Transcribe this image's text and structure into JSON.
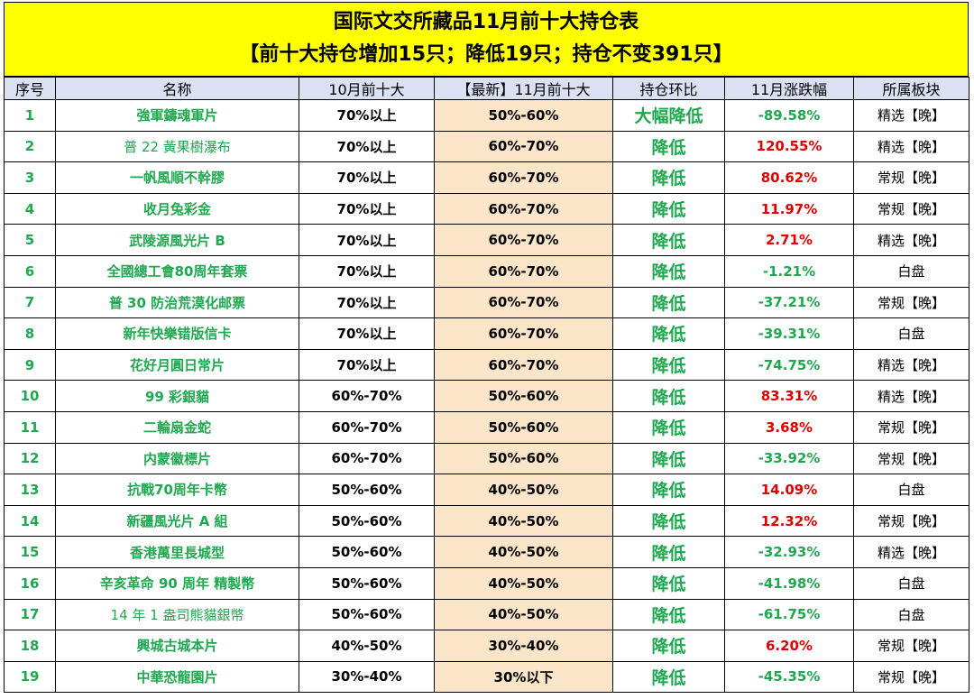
{
  "title": {
    "line1": "国际文交所藏品11月前十大持仓表",
    "line2": "【前十大持仓增加15只；降低19只；持仓不变391只】"
  },
  "headers": [
    "序号",
    "名称",
    "10月前十大",
    "【最新】11月前十大",
    "持仓环比",
    "11月涨跌幅",
    "所属板块"
  ],
  "colors": {
    "title_bg": "#ffff00",
    "header_bg": "#d9e1f2",
    "highlight_col": "#fbe5c8",
    "green": "#1fa84f",
    "red": "#e00000"
  },
  "rows": [
    {
      "no": "1",
      "name": "強軍鑄魂軍片",
      "oct": "70%以上",
      "nov": "50%-60%",
      "chg": "大幅降低",
      "pct": "-89.58%",
      "dir": "down",
      "sec": "精选【晚】",
      "light": false
    },
    {
      "no": "2",
      "name": "普 22 黃果樹瀑布",
      "oct": "70%以上",
      "nov": "60%-70%",
      "chg": "降低",
      "pct": "120.55%",
      "dir": "up",
      "sec": "精选【晚】",
      "light": true
    },
    {
      "no": "3",
      "name": "一帆風順不幹膠",
      "oct": "70%以上",
      "nov": "60%-70%",
      "chg": "降低",
      "pct": "80.62%",
      "dir": "up",
      "sec": "常规【晚】",
      "light": false
    },
    {
      "no": "4",
      "name": "收月兔彩金",
      "oct": "70%以上",
      "nov": "60%-70%",
      "chg": "降低",
      "pct": "11.97%",
      "dir": "up",
      "sec": "常规【晚】",
      "light": false
    },
    {
      "no": "5",
      "name": "武陵源風光片 B",
      "oct": "70%以上",
      "nov": "60%-70%",
      "chg": "降低",
      "pct": "2.71%",
      "dir": "up",
      "sec": "精选【晚】",
      "light": false
    },
    {
      "no": "6",
      "name": "全國總工會80周年套票",
      "oct": "70%以上",
      "nov": "60%-70%",
      "chg": "降低",
      "pct": "-1.21%",
      "dir": "down",
      "sec": "白盘",
      "light": false
    },
    {
      "no": "7",
      "name": "普 30 防治荒漠化邮票",
      "oct": "70%以上",
      "nov": "60%-70%",
      "chg": "降低",
      "pct": "-37.21%",
      "dir": "down",
      "sec": "常规【晚】",
      "light": false
    },
    {
      "no": "8",
      "name": "新年快樂错版信卡",
      "oct": "70%以上",
      "nov": "60%-70%",
      "chg": "降低",
      "pct": "-39.31%",
      "dir": "down",
      "sec": "白盘",
      "light": false
    },
    {
      "no": "9",
      "name": "花好月圓日常片",
      "oct": "70%以上",
      "nov": "60%-70%",
      "chg": "降低",
      "pct": "-74.75%",
      "dir": "down",
      "sec": "精选【晚】",
      "light": false
    },
    {
      "no": "10",
      "name": "99 彩銀貓",
      "oct": "60%-70%",
      "nov": "50%-60%",
      "chg": "降低",
      "pct": "83.31%",
      "dir": "up",
      "sec": "精选【晚】",
      "light": false
    },
    {
      "no": "11",
      "name": "二輪扇金蛇",
      "oct": "60%-70%",
      "nov": "50%-60%",
      "chg": "降低",
      "pct": "3.68%",
      "dir": "up",
      "sec": "常规【晚】",
      "light": false
    },
    {
      "no": "12",
      "name": "内蒙徽標片",
      "oct": "60%-70%",
      "nov": "50%-60%",
      "chg": "降低",
      "pct": "-33.92%",
      "dir": "down",
      "sec": "常规【晚】",
      "light": false
    },
    {
      "no": "13",
      "name": "抗戰70周年卡幣",
      "oct": "50%-60%",
      "nov": "40%-50%",
      "chg": "降低",
      "pct": "14.09%",
      "dir": "up",
      "sec": "白盘",
      "light": false
    },
    {
      "no": "14",
      "name": "新疆風光片 A 組",
      "oct": "50%-60%",
      "nov": "40%-50%",
      "chg": "降低",
      "pct": "12.32%",
      "dir": "up",
      "sec": "常规【晚】",
      "light": false
    },
    {
      "no": "15",
      "name": "香港萬里長城型",
      "oct": "50%-60%",
      "nov": "40%-50%",
      "chg": "降低",
      "pct": "-32.93%",
      "dir": "down",
      "sec": "精选【晚】",
      "light": false
    },
    {
      "no": "16",
      "name": "辛亥革命 90 周年 精製幣",
      "oct": "50%-60%",
      "nov": "40%-50%",
      "chg": "降低",
      "pct": "-41.98%",
      "dir": "down",
      "sec": "白盘",
      "light": false
    },
    {
      "no": "17",
      "name": "14 年 1 盎司熊貓銀幣",
      "oct": "50%-60%",
      "nov": "40%-50%",
      "chg": "降低",
      "pct": "-61.75%",
      "dir": "down",
      "sec": "白盘",
      "light": true
    },
    {
      "no": "18",
      "name": "興城古城本片",
      "oct": "40%-50%",
      "nov": "30%-40%",
      "chg": "降低",
      "pct": "6.20%",
      "dir": "up",
      "sec": "常规【晚】",
      "light": false
    },
    {
      "no": "19",
      "name": "中華恐龍園片",
      "oct": "30%-40%",
      "nov": "30%以下",
      "chg": "降低",
      "pct": "-45.35%",
      "dir": "down",
      "sec": "常规【晚】",
      "light": false
    }
  ]
}
